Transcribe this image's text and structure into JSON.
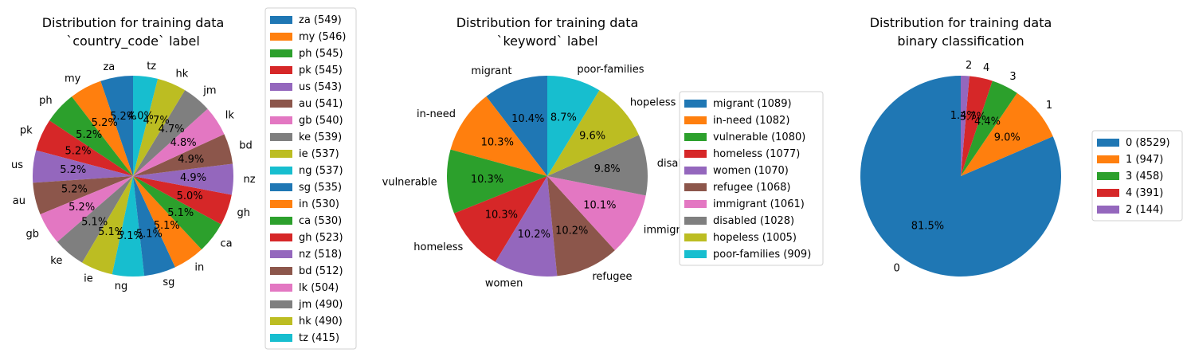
{
  "chart_data": [
    {
      "type": "pie",
      "title": "Distribution for training data\n`country_code` label",
      "categories": [
        "za",
        "my",
        "ph",
        "pk",
        "us",
        "au",
        "gb",
        "ke",
        "ie",
        "ng",
        "sg",
        "in",
        "ca",
        "gh",
        "nz",
        "bd",
        "lk",
        "jm",
        "hk",
        "tz"
      ],
      "values": [
        549,
        546,
        545,
        545,
        543,
        541,
        540,
        539,
        537,
        537,
        535,
        530,
        530,
        523,
        518,
        512,
        504,
        490,
        490,
        415
      ],
      "percent_labels": [
        "5.2%",
        "5.2%",
        "5.2%",
        "5.2%",
        "5.2%",
        "5.2%",
        "5.2%",
        "5.1%",
        "5.1%",
        "5.1%",
        "5.1%",
        "5.1%",
        "5.1%",
        "5.0%",
        "4.9%",
        "4.9%",
        "4.8%",
        "4.7%",
        "4.7%",
        "4.0%"
      ],
      "legend": [
        "za (549)",
        "my (546)",
        "ph (545)",
        "pk (545)",
        "us (543)",
        "au (541)",
        "gb (540)",
        "ke (539)",
        "ie (537)",
        "ng (537)",
        "sg (535)",
        "in (530)",
        "ca (530)",
        "gh (523)",
        "nz (518)",
        "bd (512)",
        "lk (504)",
        "jm (490)",
        "hk (490)",
        "tz (415)"
      ],
      "start_angle_deg": 90,
      "direction": "counterclockwise",
      "legend_position": "right"
    },
    {
      "type": "pie",
      "title": "Distribution for training data\n`keyword` label",
      "categories": [
        "migrant",
        "in-need",
        "vulnerable",
        "homeless",
        "women",
        "refugee",
        "immigrant",
        "disabled",
        "hopeless",
        "poor-families"
      ],
      "values": [
        1089,
        1082,
        1080,
        1077,
        1070,
        1068,
        1061,
        1028,
        1005,
        909
      ],
      "percent_labels": [
        "10.4%",
        "10.3%",
        "10.3%",
        "10.3%",
        "10.2%",
        "10.2%",
        "10.1%",
        "9.8%",
        "9.6%",
        "8.7%"
      ],
      "legend": [
        "migrant (1089)",
        "in-need (1082)",
        "vulnerable (1080)",
        "homeless (1077)",
        "women (1070)",
        "refugee (1068)",
        "immigrant (1061)",
        "disabled (1028)",
        "hopeless (1005)",
        "poor-families (909)"
      ],
      "start_angle_deg": 90,
      "direction": "counterclockwise",
      "legend_position": "right"
    },
    {
      "type": "pie",
      "title": "Distribution for training data\nbinary classification",
      "categories": [
        "0",
        "1",
        "3",
        "4",
        "2"
      ],
      "values": [
        8529,
        947,
        458,
        391,
        144
      ],
      "percent_labels": [
        "81.5%",
        "9.0%",
        "4.4%",
        "3.7%",
        "1.4%"
      ],
      "legend": [
        "0 (8529)",
        "1 (947)",
        "3 (458)",
        "4 (391)",
        "2 (144)"
      ],
      "start_angle_deg": 90,
      "direction": "counterclockwise",
      "legend_position": "right"
    }
  ],
  "palette": [
    "#1f77b4",
    "#ff7f0e",
    "#2ca02c",
    "#d62728",
    "#9467bd",
    "#8c564b",
    "#e377c2",
    "#7f7f7f",
    "#bcbd22",
    "#17becf"
  ]
}
